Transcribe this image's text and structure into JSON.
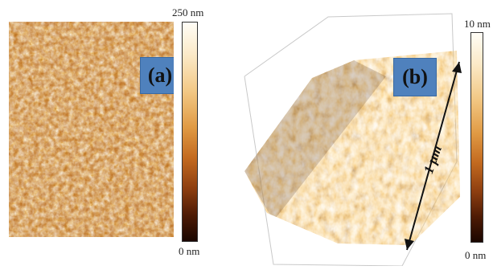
{
  "panel_a": {
    "label": "(a)",
    "colorbar": {
      "max_label": "250 nm",
      "min_label": "0 nm"
    }
  },
  "panel_b": {
    "label": "(b)",
    "scale_label": "1 µm",
    "colorbar": {
      "max_label": "10 nm",
      "min_label": "0 nm"
    }
  },
  "colors": {
    "label_box": "#4f81bd",
    "surface_dark": "#5a2a08",
    "surface_mid": "#c87a2a",
    "surface_light": "#fff0c8"
  }
}
